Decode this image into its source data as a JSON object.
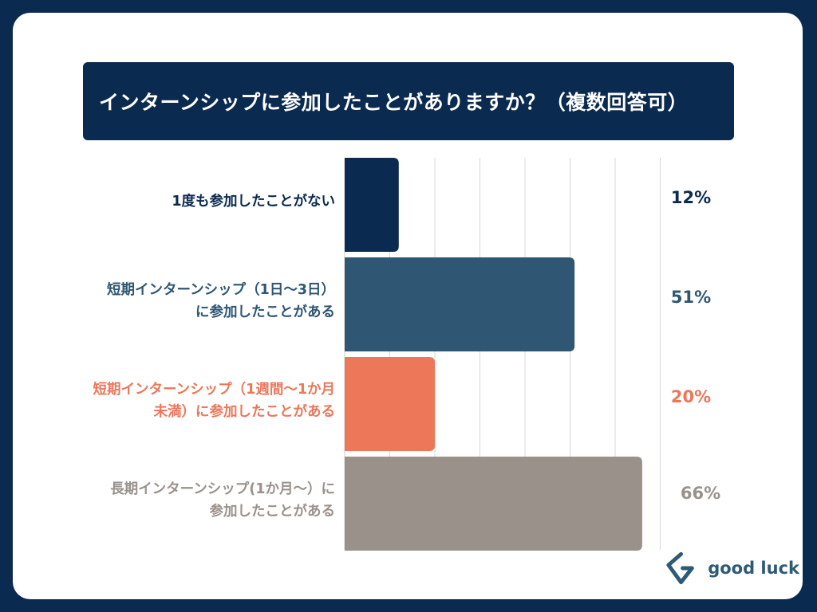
{
  "title": "インターンシップに参加したことがありますか？（複数回答可）",
  "brand": "good luck",
  "chart_data": {
    "type": "bar",
    "orientation": "horizontal",
    "title": "インターンシップに参加したことがありますか？（複数回答可）",
    "xlim": [
      0,
      70
    ],
    "grid": true,
    "categories": [
      [
        "1度も参加したことがない"
      ],
      [
        "短期インターンシップ（1日〜3日）",
        "に参加したことがある"
      ],
      [
        "短期インターンシップ（1週間〜1か月",
        "未満）に参加したことがある"
      ],
      [
        "長期インターンシップ(1か月〜）に",
        "参加したことがある"
      ]
    ],
    "values": [
      12,
      51,
      20,
      66
    ],
    "value_labels": [
      "12%",
      "51%",
      "20%",
      "66%"
    ],
    "colors": [
      "#0b2a4f",
      "#2f5672",
      "#ec7759",
      "#9a918b"
    ],
    "label_colors": [
      "#0b2a4f",
      "#2f5672",
      "#ec7759",
      "#9a918b"
    ]
  }
}
